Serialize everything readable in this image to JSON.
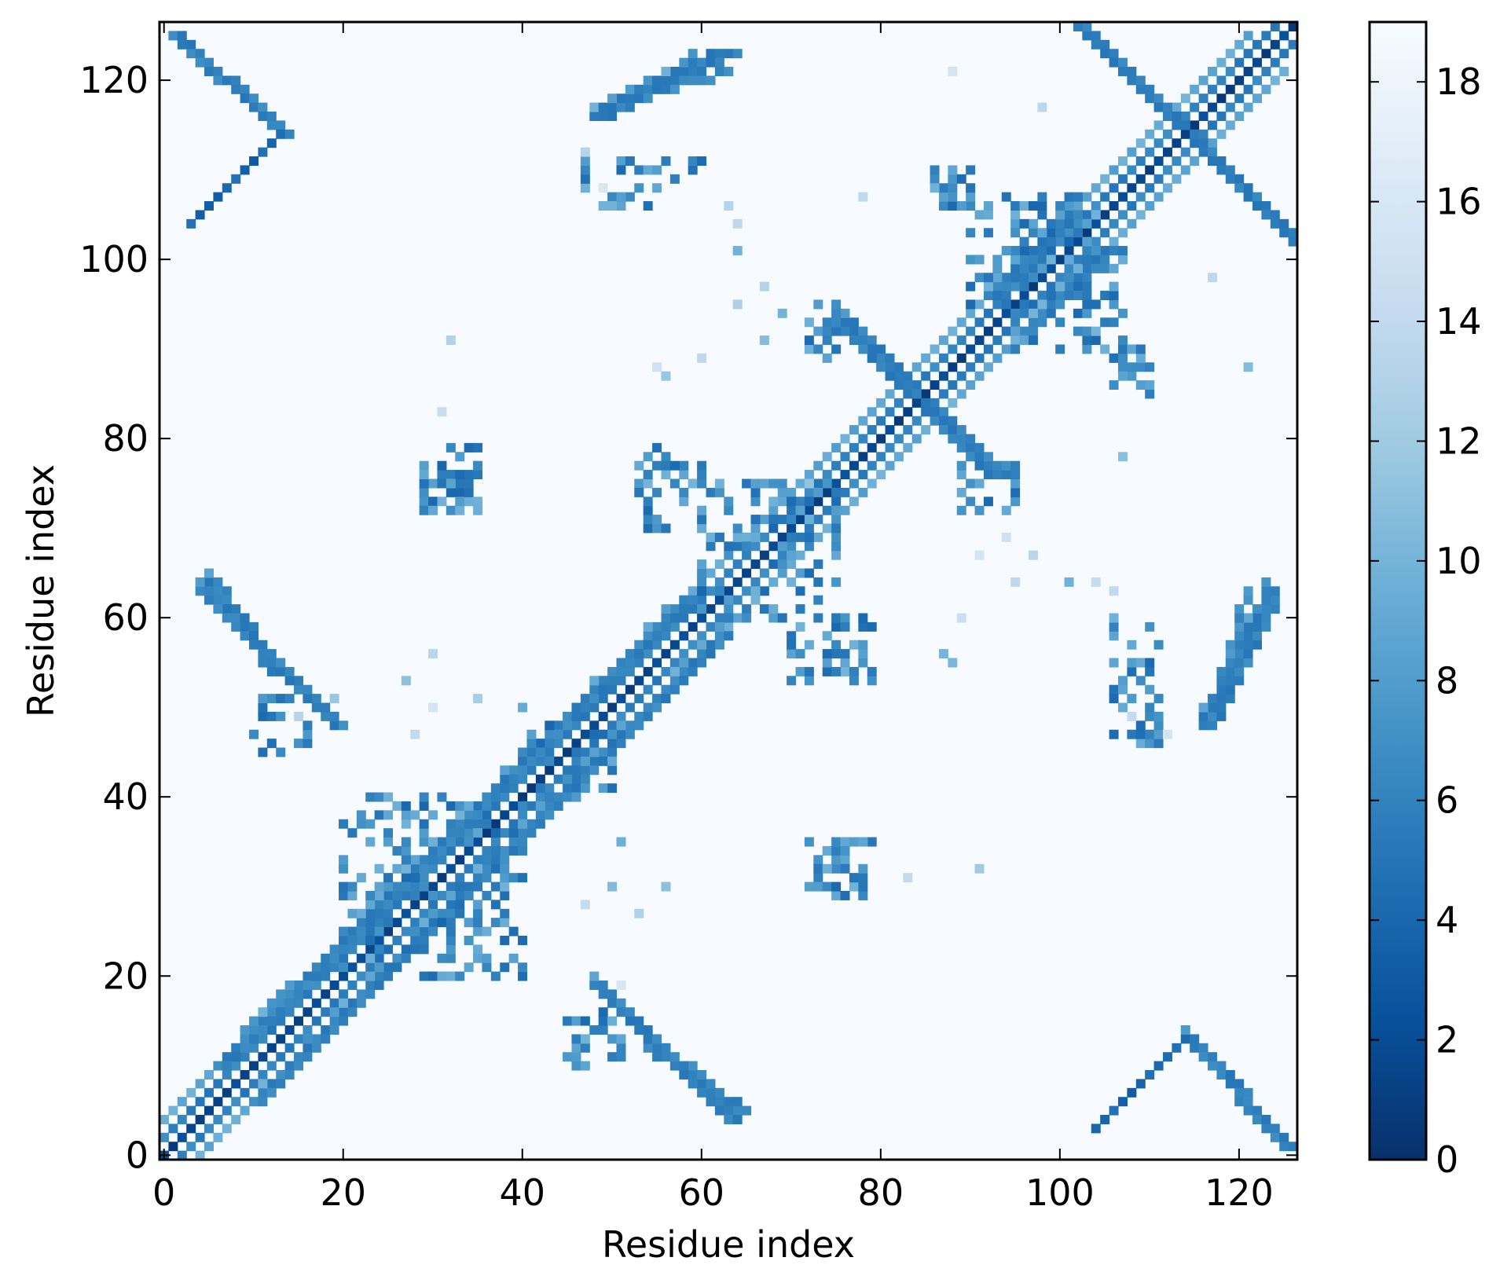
{
  "chart_data": {
    "type": "heatmap",
    "title": "",
    "xlabel": "Residue index",
    "ylabel": "Residue index",
    "n_residues": 127,
    "xlim": [
      0,
      126
    ],
    "ylim": [
      0,
      126
    ],
    "x_ticks": [
      0,
      20,
      40,
      60,
      80,
      100,
      120
    ],
    "y_ticks": [
      0,
      20,
      40,
      60,
      80,
      100,
      120
    ],
    "colormap": "Blues_r",
    "colormap_stops": [
      "#08306b",
      "#08519c",
      "#2171b5",
      "#4292c6",
      "#6baed6",
      "#9ecae1",
      "#c6dbef",
      "#deebf7",
      "#f7fbff"
    ],
    "background_value": 19,
    "colorbar": {
      "range": [
        0,
        19
      ],
      "ticks": [
        0,
        2,
        4,
        6,
        8,
        10,
        12,
        14,
        16,
        18
      ]
    },
    "contact_segments": [
      {
        "from": [
          0,
          0
        ],
        "to": [
          126,
          126
        ],
        "width": 1,
        "value": 0.5
      },
      {
        "from": [
          2,
          0
        ],
        "to": [
          126,
          124
        ],
        "width": 1,
        "value": 5
      },
      {
        "from": [
          0,
          2
        ],
        "to": [
          124,
          126
        ],
        "width": 1,
        "value": 5
      },
      {
        "from": [
          4,
          0
        ],
        "to": [
          125,
          121
        ],
        "width": 1,
        "value": 8
      },
      {
        "from": [
          0,
          4
        ],
        "to": [
          121,
          125
        ],
        "width": 1,
        "value": 8
      },
      {
        "from": [
          10,
          6
        ],
        "to": [
          62,
          58
        ],
        "width": 2,
        "value": 5
      },
      {
        "from": [
          6,
          10
        ],
        "to": [
          58,
          62
        ],
        "width": 2,
        "value": 5
      },
      {
        "from": [
          96,
          92
        ],
        "to": [
          105,
          101
        ],
        "width": 2,
        "value": 5
      },
      {
        "from": [
          92,
          96
        ],
        "to": [
          101,
          105
        ],
        "width": 2,
        "value": 5
      },
      {
        "from": [
          1,
          125
        ],
        "to": [
          13,
          114
        ],
        "width": 2,
        "value": 5
      },
      {
        "from": [
          114,
          13
        ],
        "to": [
          125,
          1
        ],
        "width": 2,
        "value": 5
      },
      {
        "from": [
          3,
          104
        ],
        "to": [
          13,
          114
        ],
        "width": 1,
        "value": 3
      },
      {
        "from": [
          104,
          3
        ],
        "to": [
          114,
          13
        ],
        "width": 1,
        "value": 3
      },
      {
        "from": [
          103,
          125
        ],
        "to": [
          126,
          102
        ],
        "width": 2,
        "value": 5
      },
      {
        "from": [
          125,
          103
        ],
        "to": [
          102,
          126
        ],
        "width": 2,
        "value": 5
      },
      {
        "from": [
          76,
          93
        ],
        "to": [
          92,
          76
        ],
        "width": 2,
        "value": 5
      },
      {
        "from": [
          93,
          76
        ],
        "to": [
          76,
          92
        ],
        "width": 2,
        "value": 5
      },
      {
        "from": [
          5,
          64
        ],
        "to": [
          12,
          54
        ],
        "width": 2,
        "value": 5
      },
      {
        "from": [
          64,
          5
        ],
        "to": [
          54,
          12
        ],
        "width": 2,
        "value": 5
      },
      {
        "from": [
          48,
          19
        ],
        "to": [
          63,
          4
        ],
        "width": 2,
        "value": 5
      },
      {
        "from": [
          19,
          48
        ],
        "to": [
          4,
          63
        ],
        "width": 2,
        "value": 5
      },
      {
        "from": [
          116,
          48
        ],
        "to": [
          123,
          62
        ],
        "width": 2,
        "value": 5
      },
      {
        "from": [
          48,
          116
        ],
        "to": [
          62,
          123
        ],
        "width": 2,
        "value": 5
      },
      {
        "from": [
          48,
          116
        ],
        "to": [
          63,
          123
        ],
        "width": 2,
        "value": 5
      },
      {
        "from": [
          116,
          48
        ],
        "to": [
          123,
          63
        ],
        "width": 2,
        "value": 5
      },
      {
        "from": [
          49,
          117
        ],
        "to": [
          63,
          121
        ],
        "width": 1,
        "value": 6
      },
      {
        "from": [
          117,
          49
        ],
        "to": [
          121,
          63
        ],
        "width": 1,
        "value": 6
      }
    ],
    "contact_clusters": [
      {
        "x": [
          10,
          18
        ],
        "y": [
          45,
          51
        ]
      },
      {
        "x": [
          45,
          51
        ],
        "y": [
          10,
          18
        ]
      },
      {
        "x": [
          29,
          35
        ],
        "y": [
          73,
          79
        ]
      },
      {
        "x": [
          73,
          79
        ],
        "y": [
          29,
          35
        ]
      },
      {
        "x": [
          72,
          78
        ],
        "y": [
          29,
          35
        ]
      },
      {
        "x": [
          29,
          35
        ],
        "y": [
          72,
          78
        ]
      },
      {
        "x": [
          50,
          60
        ],
        "y": [
          106,
          111
        ]
      },
      {
        "x": [
          106,
          111
        ],
        "y": [
          50,
          60
        ]
      },
      {
        "x": [
          75,
          79
        ],
        "y": [
          53,
          60
        ]
      },
      {
        "x": [
          53,
          60
        ],
        "y": [
          75,
          79
        ]
      },
      {
        "x": [
          106,
          111
        ],
        "y": [
          46,
          51
        ]
      },
      {
        "x": [
          46,
          51
        ],
        "y": [
          106,
          111
        ]
      },
      {
        "x": [
          85,
          90
        ],
        "y": [
          106,
          110
        ]
      },
      {
        "x": [
          106,
          110
        ],
        "y": [
          85,
          90
        ]
      },
      {
        "x": [
          106,
          110
        ],
        "y": [
          86,
          90
        ]
      },
      {
        "x": [
          86,
          90
        ],
        "y": [
          106,
          110
        ]
      },
      {
        "x": [
          72,
          77
        ],
        "y": [
          89,
          95
        ]
      },
      {
        "x": [
          89,
          95
        ],
        "y": [
          72,
          77
        ]
      },
      {
        "x": [
          53,
          60
        ],
        "y": [
          70,
          77
        ]
      },
      {
        "x": [
          70,
          77
        ],
        "y": [
          53,
          60
        ]
      },
      {
        "x": [
          20,
          40
        ],
        "y": [
          20,
          40
        ]
      },
      {
        "x": [
          40,
          50
        ],
        "y": [
          40,
          50
        ]
      },
      {
        "x": [
          60,
          75
        ],
        "y": [
          60,
          75
        ]
      },
      {
        "x": [
          95,
          107
        ],
        "y": [
          90,
          104
        ]
      },
      {
        "x": [
          90,
          104
        ],
        "y": [
          95,
          107
        ]
      }
    ],
    "scattered_contacts": [
      [
        88,
        121
      ],
      [
        121,
        88
      ],
      [
        98,
        117
      ],
      [
        117,
        98
      ],
      [
        32,
        91
      ],
      [
        91,
        32
      ],
      [
        47,
        112
      ],
      [
        112,
        47
      ],
      [
        56,
        87
      ],
      [
        87,
        56
      ],
      [
        60,
        89
      ],
      [
        89,
        60
      ],
      [
        78,
        107
      ],
      [
        107,
        78
      ],
      [
        63,
        106
      ],
      [
        106,
        63
      ],
      [
        64,
        101
      ],
      [
        101,
        64
      ],
      [
        67,
        97
      ],
      [
        97,
        67
      ],
      [
        47,
        28
      ],
      [
        28,
        47
      ],
      [
        50,
        30
      ],
      [
        30,
        50
      ],
      [
        53,
        27
      ],
      [
        27,
        53
      ],
      [
        51,
        35
      ],
      [
        35,
        51
      ],
      [
        56,
        30
      ],
      [
        30,
        56
      ],
      [
        49,
        15
      ],
      [
        15,
        49
      ],
      [
        51,
        19
      ],
      [
        19,
        51
      ],
      [
        95,
        64
      ],
      [
        64,
        95
      ],
      [
        101,
        64
      ],
      [
        64,
        101
      ],
      [
        104,
        64
      ],
      [
        64,
        104
      ],
      [
        108,
        49
      ],
      [
        49,
        108
      ],
      [
        91,
        32
      ],
      [
        32,
        91
      ],
      [
        83,
        31
      ],
      [
        31,
        83
      ],
      [
        75,
        72
      ],
      [
        72,
        75
      ],
      [
        69,
        94
      ],
      [
        94,
        69
      ],
      [
        67,
        91
      ],
      [
        91,
        67
      ],
      [
        88,
        55
      ],
      [
        55,
        88
      ]
    ]
  }
}
